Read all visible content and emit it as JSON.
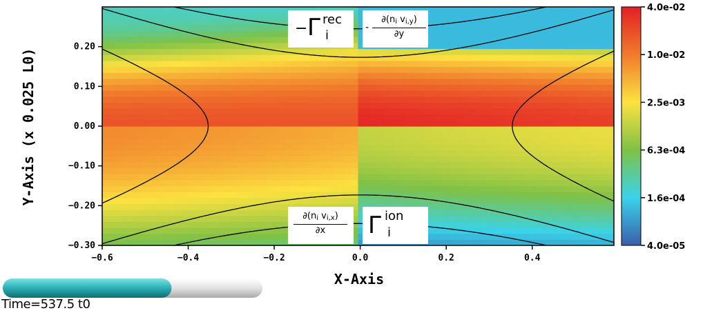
{
  "time_label": "Time=537.5 t0",
  "time_progress": 0.65,
  "quadrant_labels": {
    "top_left": {
      "sign": "−",
      "symbol": "Γ",
      "sup": "rec",
      "sub": "i"
    },
    "top_right": {
      "sign": "-",
      "num": "∂(n",
      "num_sub1": "i",
      "num_mid": " v",
      "num_sub2": "i,y",
      "num_end": ")",
      "den": "∂y"
    },
    "bottom_left": {
      "num": "∂(n",
      "num_sub1": "i",
      "num_mid": " v",
      "num_sub2": "i,x",
      "num_end": ")",
      "den": "∂x"
    },
    "bottom_right": {
      "symbol": "Γ",
      "sup": "ion",
      "sub": "i"
    }
  },
  "chart_data": {
    "type": "heatmap",
    "xlabel": "X-Axis",
    "ylabel": "Y-Axis (x 0.025 L0)",
    "xlim": [
      -0.6,
      0.59
    ],
    "ylim": [
      -0.3,
      0.3
    ],
    "x_ticks": [
      -0.6,
      -0.4,
      -0.2,
      0.0,
      0.2,
      0.4
    ],
    "x_tick_labels": [
      "−0.6",
      "−0.4",
      "−0.2",
      "0.0",
      "0.2",
      "0.4"
    ],
    "y_ticks": [
      -0.3,
      -0.2,
      -0.1,
      0.0,
      0.1,
      0.2
    ],
    "y_tick_labels": [
      "−0.30",
      "−0.20",
      "−0.10",
      "0.00",
      "0.10",
      "0.20"
    ],
    "colorbar": {
      "scale": "log",
      "min": 4e-05,
      "max": 0.04,
      "labels": [
        "4.0e-02",
        "1.0e-02",
        "2.5e-03",
        "6.3e-04",
        "1.6e-04",
        "4.0e-05"
      ],
      "colors": [
        "#e41f26",
        "#f07a2c",
        "#fce240",
        "#7fc146",
        "#3ad3ea",
        "#3a5eaa"
      ]
    },
    "contours": {
      "description_values": [
        -0.45,
        -0.35,
        -0.28,
        -0.22,
        -0.16,
        -0.11,
        -0.06,
        -0.02,
        0.03
      ]
    }
  }
}
